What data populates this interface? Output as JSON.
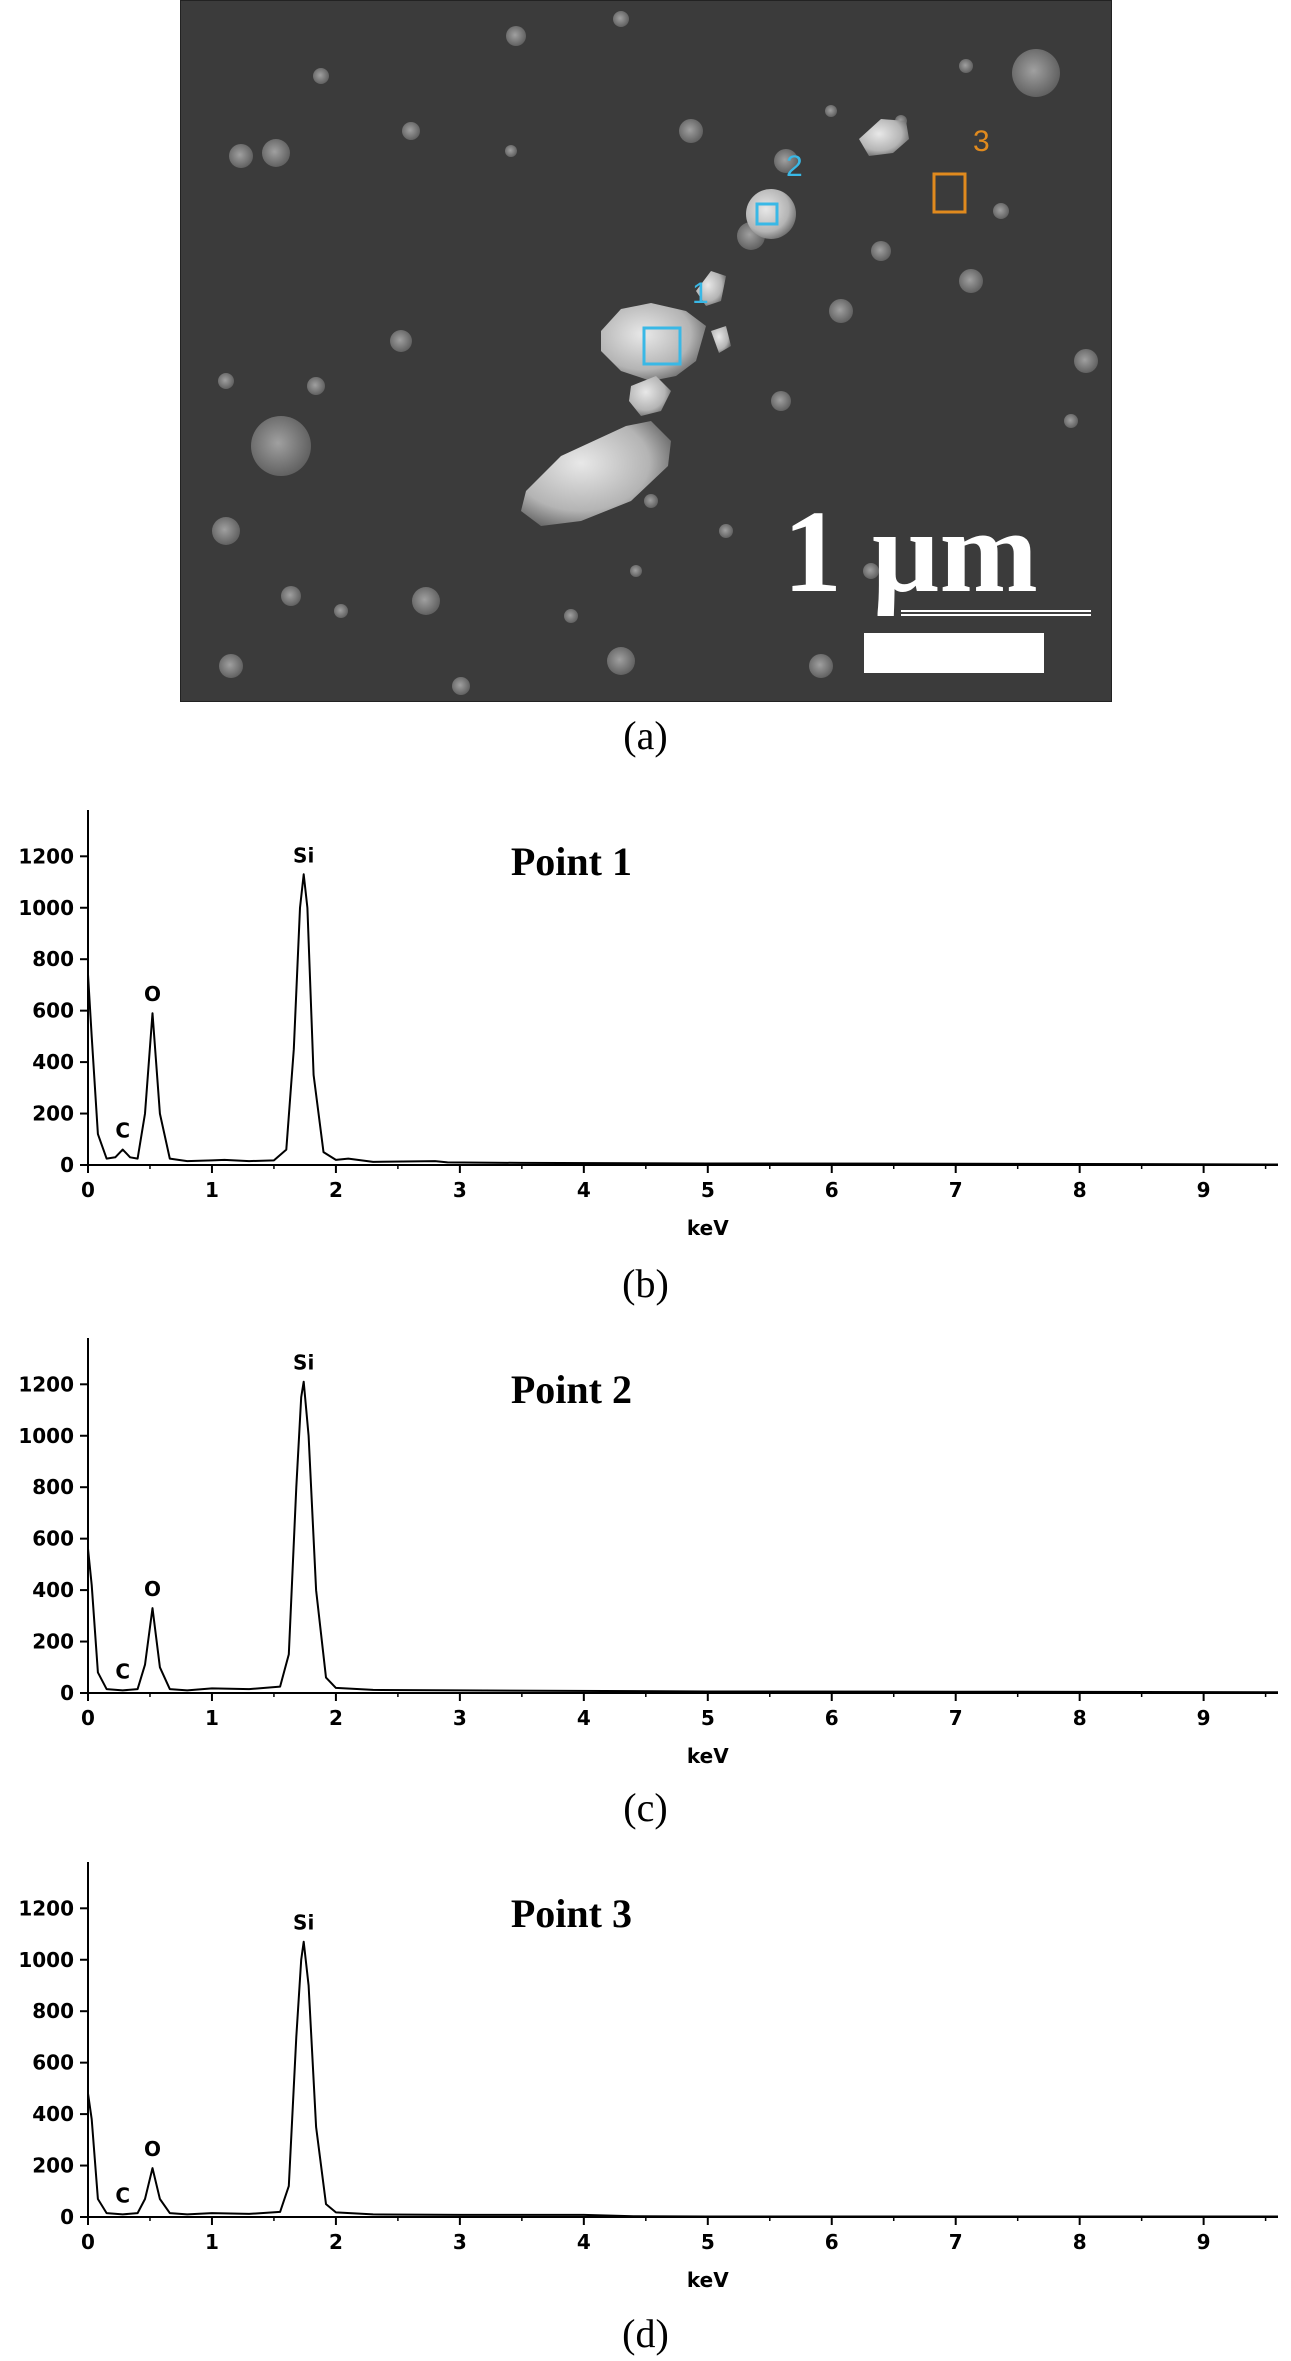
{
  "figure": {
    "sem_panel": {
      "scale_bar_label": "1 µm",
      "markers": [
        {
          "label": "1",
          "color": "#39b8e6"
        },
        {
          "label": "2",
          "color": "#39b8e6"
        },
        {
          "label": "3",
          "color": "#e08a1e"
        }
      ],
      "caption": "(a)"
    },
    "captions": [
      "(b)",
      "(c)",
      "(d)"
    ]
  },
  "chart_data": [
    {
      "type": "line",
      "title": "Point 1",
      "xlabel": "keV",
      "ylabel": "",
      "xlim": [
        0,
        9.6
      ],
      "ylim": [
        0,
        1380
      ],
      "xticks": [
        0,
        1,
        2,
        3,
        4,
        5,
        6,
        7,
        8,
        9
      ],
      "yticks": [
        0,
        200,
        400,
        600,
        800,
        1000,
        1200
      ],
      "peaks": [
        {
          "label": "C",
          "x": 0.28,
          "y": 60
        },
        {
          "label": "O",
          "x": 0.52,
          "y": 590
        },
        {
          "label": "Si",
          "x": 1.74,
          "y": 1130
        }
      ],
      "series": [
        {
          "x": [
            0,
            0.03,
            0.08,
            0.15,
            0.22,
            0.28,
            0.34,
            0.4,
            0.46,
            0.52,
            0.58,
            0.66,
            0.8,
            1.0,
            1.1,
            1.3,
            1.5,
            1.6,
            1.66,
            1.71,
            1.74,
            1.77,
            1.82,
            1.9,
            2.0,
            2.1,
            2.3,
            2.8,
            2.9,
            3.5,
            5.0,
            7.0,
            9.6
          ],
          "y": [
            740,
            500,
            120,
            25,
            30,
            60,
            30,
            25,
            200,
            590,
            200,
            25,
            15,
            18,
            20,
            15,
            18,
            60,
            450,
            1000,
            1130,
            1000,
            350,
            50,
            20,
            25,
            12,
            15,
            10,
            8,
            6,
            5,
            2
          ]
        }
      ]
    },
    {
      "type": "line",
      "title": "Point 2",
      "xlabel": "keV",
      "ylabel": "",
      "xlim": [
        0,
        9.6
      ],
      "ylim": [
        0,
        1380
      ],
      "xticks": [
        0,
        1,
        2,
        3,
        4,
        5,
        6,
        7,
        8,
        9
      ],
      "yticks": [
        0,
        200,
        400,
        600,
        800,
        1000,
        1200
      ],
      "peaks": [
        {
          "label": "C",
          "x": 0.28,
          "y": 10
        },
        {
          "label": "O",
          "x": 0.52,
          "y": 330
        },
        {
          "label": "Si",
          "x": 1.74,
          "y": 1210
        }
      ],
      "series": [
        {
          "x": [
            0,
            0.03,
            0.08,
            0.15,
            0.28,
            0.4,
            0.46,
            0.52,
            0.58,
            0.66,
            0.8,
            1.0,
            1.3,
            1.55,
            1.62,
            1.68,
            1.72,
            1.74,
            1.78,
            1.84,
            1.92,
            2.0,
            2.3,
            3.0,
            5.0,
            7.0,
            9.6
          ],
          "y": [
            560,
            420,
            80,
            15,
            10,
            15,
            110,
            330,
            100,
            15,
            10,
            18,
            15,
            25,
            150,
            800,
            1150,
            1210,
            1000,
            400,
            60,
            20,
            12,
            10,
            6,
            5,
            3
          ]
        }
      ]
    },
    {
      "type": "line",
      "title": "Point 3",
      "xlabel": "keV",
      "ylabel": "",
      "xlim": [
        0,
        9.6
      ],
      "ylim": [
        0,
        1380
      ],
      "xticks": [
        0,
        1,
        2,
        3,
        4,
        5,
        6,
        7,
        8,
        9
      ],
      "yticks": [
        0,
        200,
        400,
        600,
        800,
        1000,
        1200
      ],
      "peaks": [
        {
          "label": "C",
          "x": 0.28,
          "y": 10
        },
        {
          "label": "O",
          "x": 0.52,
          "y": 190
        },
        {
          "label": "Si",
          "x": 1.74,
          "y": 1070
        }
      ],
      "series": [
        {
          "x": [
            0,
            0.03,
            0.08,
            0.15,
            0.28,
            0.4,
            0.46,
            0.52,
            0.58,
            0.66,
            0.8,
            1.0,
            1.3,
            1.55,
            1.62,
            1.68,
            1.72,
            1.74,
            1.78,
            1.84,
            1.92,
            2.0,
            2.3,
            3.0,
            4.0,
            4.4,
            5.0,
            7.0,
            9.6
          ],
          "y": [
            480,
            380,
            70,
            15,
            10,
            15,
            70,
            190,
            70,
            15,
            10,
            15,
            12,
            20,
            120,
            700,
            1000,
            1070,
            900,
            350,
            50,
            18,
            10,
            8,
            8,
            3,
            2,
            2,
            2
          ]
        }
      ]
    }
  ]
}
